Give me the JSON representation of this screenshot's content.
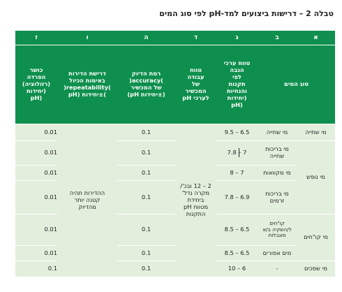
{
  "table": {
    "title": "טבלה 2 – דרישות ביצועים למד-pH לפי סוג המים",
    "letters": {
      "aleph": "א",
      "bet": "ב",
      "gimel": "ג",
      "dalet": "ד",
      "he": "ה",
      "vav": "ו",
      "zayin": "ז"
    },
    "headers": {
      "water_type": "סוג המים",
      "ph_range": "טווח ערכי\nהגבה\nלפי\nתקנות\nוהנחיות\n(יחידות\npH)",
      "working_range": "טווח\nעבודה\nשל\nהמכשיר\nלערכי pH",
      "accuracy": "רמת הדיוק\n(accuracy)\nשל המכשיר\n(±יחידות pH)",
      "repeatability": "דרישת הדירות\nבאימות הכיול\n(repeatability)\n(±יחידות pH)",
      "resolution": "כושר\nהפרדה\n(רזולוציה)\n(יחידות\npH)"
    },
    "groups": {
      "tap": "מי שתייה",
      "other": "מי נופש",
      "ponds": "מי קו\"חים",
      "waste": "מי שפכים"
    },
    "rows": [
      {
        "sub": "מי שתייה",
        "range": "9.5 – 6.5",
        "accuracy": "0.1",
        "resolution": "0.01"
      },
      {
        "sub": "מי בריכות\nשחייה",
        "range": "7.8 – 7",
        "accuracy": "0.1",
        "resolution": "0.01"
      },
      {
        "sub": "מי מקוואות",
        "range": "8 – 7",
        "accuracy": "0.1",
        "resolution": "0.01"
      },
      {
        "sub": "מי בריכות\nזרמים",
        "range": "7.8 – 6.9",
        "accuracy": "0.1",
        "resolution": "0.01"
      },
      {
        "sub": "קו\"חים\nל/השקיה ב/א\nמוגבלות",
        "range": "8.5 – 6.5",
        "accuracy": "0.1",
        "resolution": "0.01"
      },
      {
        "sub": "מים אפורים",
        "range": "8.5 – 6.5",
        "accuracy": "0.1",
        "resolution": "0.01"
      },
      {
        "sub": "-",
        "range": "10 – 6",
        "accuracy": "0.1",
        "resolution": "0.1"
      }
    ],
    "working_range_value": "2 – 12 ובכ'/\nמקרה נדל'\nביחידת\npH מטווח\nהתקנות",
    "repeatability_value": "ההדירות תהיה\nקטנה יותר\nמהדיוק"
  }
}
